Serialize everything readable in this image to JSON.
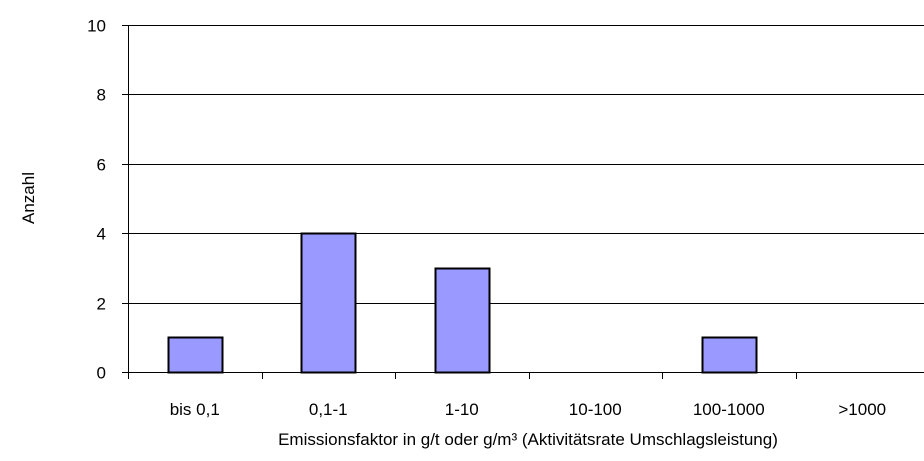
{
  "chart_data": {
    "type": "bar",
    "categories": [
      "bis 0,1",
      "0,1-1",
      "1-10",
      "10-100",
      "100-1000",
      ">1000"
    ],
    "values": [
      1,
      4,
      3,
      0,
      1,
      0
    ],
    "title": "",
    "xlabel": "Emissionsfaktor in g/t oder g/m³ (Aktivitätsrate Umschlagsleistung)",
    "ylabel": "Anzahl",
    "ylim": [
      0,
      10
    ],
    "yticks": [
      "0",
      "2",
      "4",
      "6",
      "8",
      "10"
    ],
    "grid": "horizontal",
    "legend": "none",
    "colors": {
      "bar_fill": "#9999ff",
      "bar_stroke": "#000000",
      "grid": "#000000",
      "background": "#ffffff"
    }
  }
}
